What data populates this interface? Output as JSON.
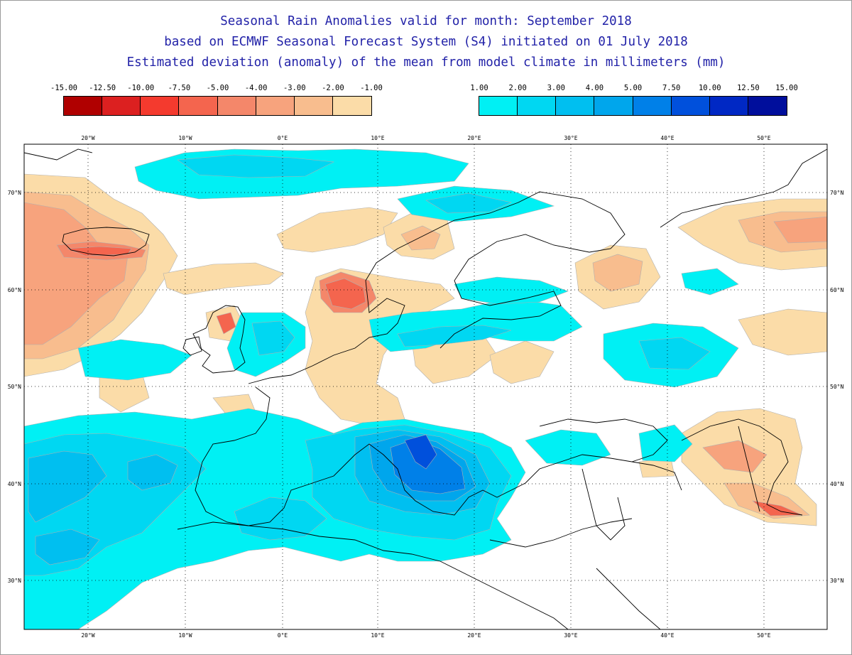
{
  "titles": {
    "line1": "Seasonal Rain Anomalies valid for month: September 2018",
    "line2": "based on ECMWF Seasonal Forecast System (S4) initiated on 01 July 2018",
    "line3": "Estimated deviation (anomaly) of the mean from model climate in millimeters (mm)"
  },
  "legend_negative": {
    "labels": [
      "-15.00",
      "-12.50",
      "-10.00",
      "-7.50",
      "-5.00",
      "-4.00",
      "-3.00",
      "-2.00",
      "-1.00"
    ],
    "colors": [
      "#b00000",
      "#dc2020",
      "#f43a2e",
      "#f4654e",
      "#f4876a",
      "#f7a37d",
      "#f8bd8e",
      "#fbdca8"
    ]
  },
  "legend_positive": {
    "labels": [
      "1.00",
      "2.00",
      "3.00",
      "4.00",
      "5.00",
      "7.50",
      "10.00",
      "12.50",
      "15.00"
    ],
    "colors": [
      "#00f0f4",
      "#00d7f2",
      "#00bff0",
      "#00a6ec",
      "#0080e8",
      "#0050dc",
      "#0028c4",
      "#000e9c"
    ]
  },
  "axes": {
    "top_lon_labels": [
      "20°W",
      "10°W",
      "0°E",
      "10°E",
      "20°E",
      "30°E",
      "40°E",
      "50°E"
    ],
    "bottom_lon_labels": [
      "20°W",
      "10°W",
      "0°E",
      "10°E",
      "20°E",
      "30°E",
      "40°E",
      "50°E"
    ],
    "left_lat_labels": [
      "70°N",
      "60°N",
      "50°N",
      "40°N",
      "30°N"
    ],
    "right_lat_labels": [
      "70°N",
      "60°N",
      "50°N",
      "40°N",
      "30°N"
    ]
  },
  "map_style": {
    "gridlines": "dotted",
    "coastline_color": "#000000",
    "anomaly_contour_color": "#b0b0b0"
  }
}
